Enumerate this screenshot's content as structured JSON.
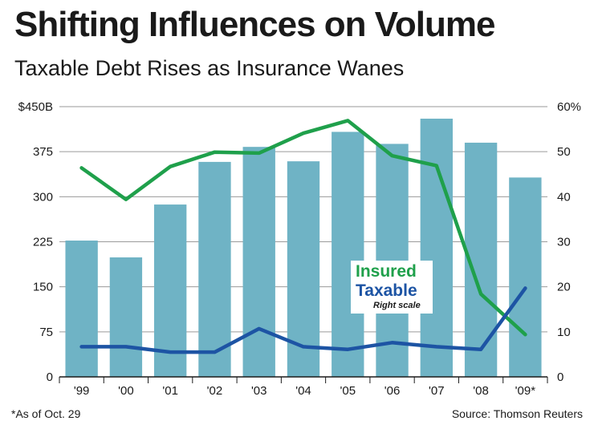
{
  "header": {
    "title": "Shifting Influences on Volume",
    "subtitle": "Taxable Debt Rises as Insurance Wanes"
  },
  "footer": {
    "footnote": "*As of Oct. 29",
    "source": "Source: Thomson Reuters"
  },
  "legend": {
    "insured": "Insured",
    "taxable": "Taxable",
    "scale_note": "Right scale"
  },
  "colors": {
    "bars": "#6fb3c5",
    "insured": "#1fa04b",
    "taxable": "#1d54a4",
    "grid": "#9a9a9a"
  },
  "chart_data": {
    "type": "bar",
    "categories": [
      "'99",
      "'00",
      "'01",
      "'02",
      "'03",
      "'04",
      "'05",
      "'06",
      "'07",
      "'08",
      "'09*"
    ],
    "ylim": [
      0,
      450
    ],
    "yticks": [
      "0",
      "75",
      "150",
      "225",
      "300",
      "375",
      "$450B"
    ],
    "y2lim": [
      0,
      60
    ],
    "y2ticks": [
      "0",
      "10",
      "20",
      "30",
      "40",
      "50",
      "60%"
    ],
    "grid": true,
    "series": [
      {
        "name": "Volume",
        "axis": "left",
        "kind": "bar",
        "values": [
          227,
          199,
          287,
          358,
          383,
          359,
          408,
          388,
          430,
          390,
          332
        ]
      },
      {
        "name": "Insured",
        "axis": "right",
        "kind": "line",
        "values": [
          46.4,
          39.4,
          46.7,
          49.9,
          49.7,
          54.1,
          56.9,
          49.1,
          46.9,
          18.4,
          9.4
        ]
      },
      {
        "name": "Taxable",
        "axis": "right",
        "kind": "line",
        "values": [
          6.7,
          6.7,
          5.5,
          5.5,
          10.7,
          6.7,
          6.1,
          7.6,
          6.7,
          6.1,
          19.7
        ]
      }
    ]
  }
}
